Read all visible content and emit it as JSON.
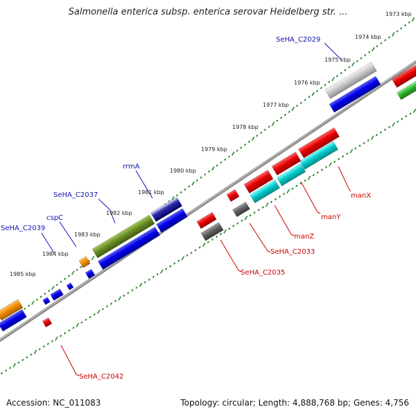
{
  "title": "Salmonella enterica subsp. enterica serovar Heidelberg str. ...",
  "footer": {
    "accession": "Accession: NC_011083",
    "summary": "Topology: circular; Length: 4,888,768 bp; Genes: 4,756"
  },
  "ruler_labels": [
    "1973 kbp",
    "1974 kbp",
    "1975 kbp",
    "1976 kbp",
    "1977 kbp",
    "1978 kbp",
    "1979 kbp",
    "1980 kbp",
    "1981 kbp",
    "1982 kbp",
    "1983 kbp",
    "1984 kbp",
    "1985 kbp"
  ],
  "top_gene_labels": [
    "SeHA_C2029",
    "rrmA",
    "SeHA_C2037",
    "cspC",
    "SeHA_C2039"
  ],
  "bottom_gene_labels": [
    "manX",
    "manY",
    "manZ",
    "SeHA_C2033",
    "SeHA_C2035",
    "SeHA_C2042"
  ],
  "colors": {
    "blue": "#0000e6",
    "red": "#e60000",
    "cyan": "#00c8c8",
    "gray": "#606060",
    "silver": "#c8c8c8",
    "olive": "#6b8e23",
    "navy": "#000080",
    "orange": "#f08c00",
    "green": "#30b030",
    "ruler_dots": "#2a8a2a",
    "backbone": "#8c8c8c",
    "label_top": "#1010b0",
    "label_bottom": "#cc0000"
  },
  "icons": {
    "gene_arrow": "arrow-right-shape",
    "gene_arrow_reverse": "arrow-left-shape"
  }
}
